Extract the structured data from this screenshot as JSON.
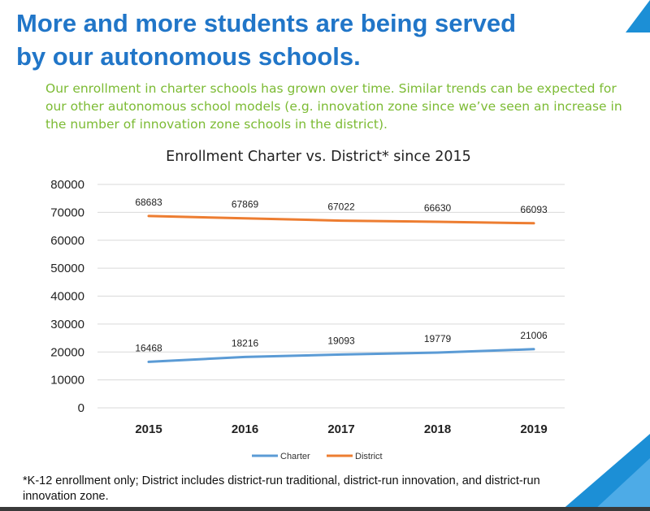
{
  "slide": {
    "title": "More and more students are being served by our autonomous schools.",
    "subtitle": "Our enrollment in charter schools has grown over time. Similar trends can be expected for our other autonomous school models (e.g. innovation zone since we’ve seen an increase in the number of innovation zone schools in the district).",
    "footnote": "*K-12 enrollment only; District includes district-run traditional, district-run innovation, and district-run innovation zone."
  },
  "colors": {
    "title": "#2176c8",
    "subtitle": "#7cbb34",
    "charter": "#5b9bd5",
    "district": "#ed7d31",
    "accent_blue": "#1c8fd6"
  },
  "chart_data": {
    "type": "line",
    "title": "Enrollment Charter vs. District* since 2015",
    "categories": [
      "2015",
      "2016",
      "2017",
      "2018",
      "2019"
    ],
    "series": [
      {
        "name": "Charter",
        "values": [
          16468,
          18216,
          19093,
          19779,
          21006
        ]
      },
      {
        "name": "District",
        "values": [
          68683,
          67869,
          67022,
          66630,
          66093
        ]
      }
    ],
    "yticks": [
      0,
      10000,
      20000,
      30000,
      40000,
      50000,
      60000,
      70000,
      80000
    ],
    "ylim": [
      0,
      80000
    ],
    "xlabel": "",
    "ylabel": "",
    "grid": true,
    "legend_position": "bottom-center",
    "data_labels": true
  }
}
